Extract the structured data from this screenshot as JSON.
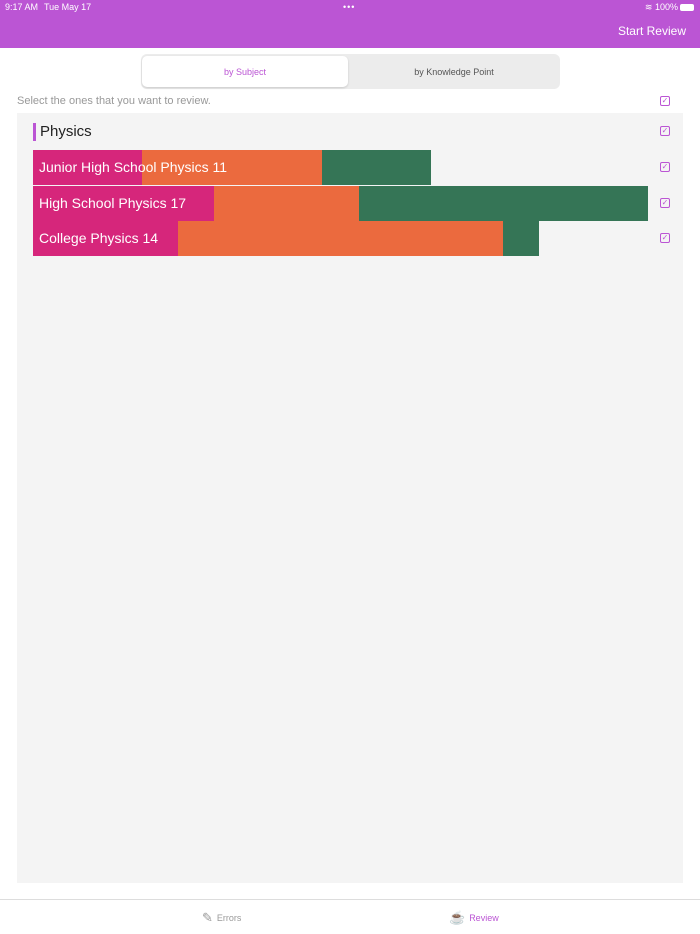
{
  "status": {
    "time": "9:17 AM",
    "date": "Tue May 17",
    "battery": "100%"
  },
  "nav": {
    "action": "Start Review"
  },
  "segments": [
    "by Subject",
    "by Knowledge Point"
  ],
  "hint": "Select the ones that you want to review.",
  "colors": {
    "accent": "#bb55d4",
    "seg1": "#d6267b",
    "seg2": "#eb6a3e",
    "seg3": "#357556"
  },
  "subject": "Physics",
  "rows": [
    {
      "label": "Junior High School Physics 11",
      "total": 11,
      "parts": [
        3,
        5,
        3
      ]
    },
    {
      "label": "High School Physics 17",
      "total": 17,
      "parts": [
        5,
        4,
        8
      ]
    },
    {
      "label": "College Physics 14",
      "total": 14,
      "parts": [
        4,
        9,
        1
      ]
    }
  ],
  "tabs": [
    {
      "label": "Errors",
      "icon": "scroll-icon"
    },
    {
      "label": "Review",
      "icon": "coffee-cup-icon"
    }
  ]
}
